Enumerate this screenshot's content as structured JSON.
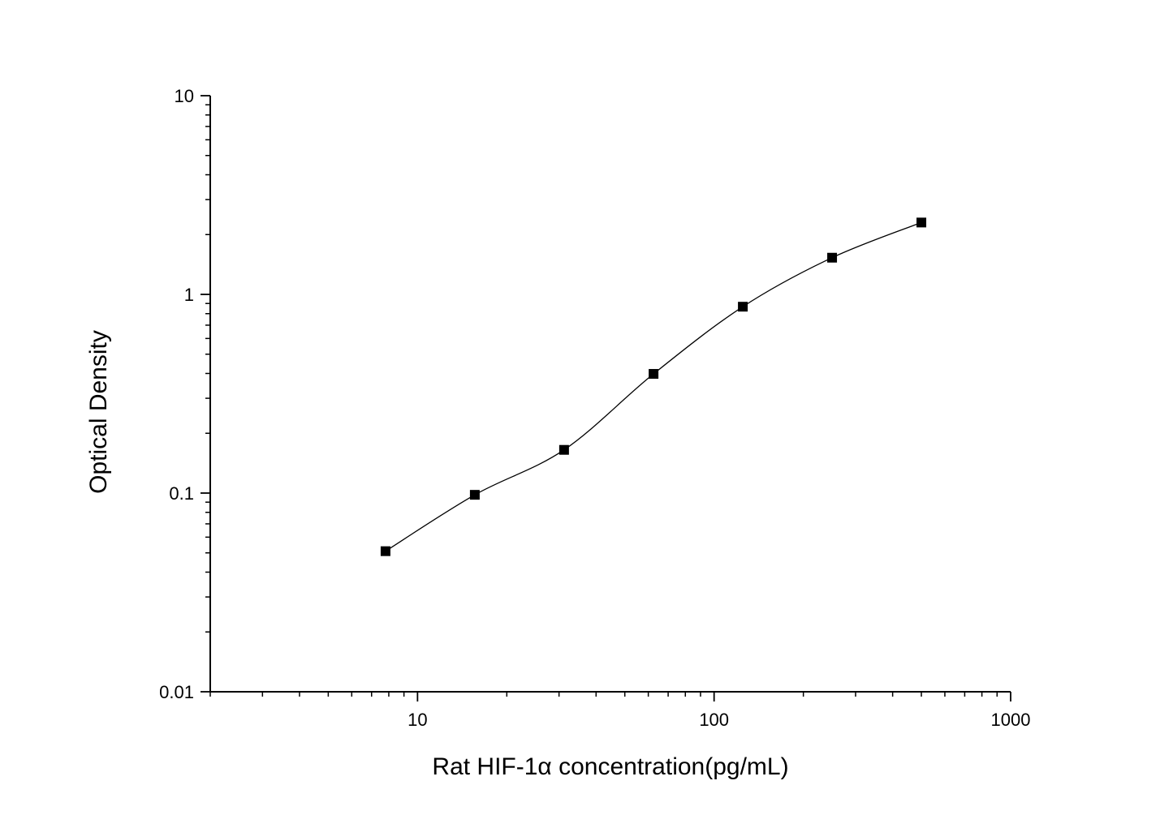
{
  "chart_data": {
    "type": "scatter",
    "title": "",
    "xlabel": "Rat HIF-1α  concentration(pg/mL)",
    "ylabel": "Optical Density",
    "xscale": "log",
    "yscale": "log",
    "xlim": [
      2,
      1000
    ],
    "ylim": [
      0.01,
      10
    ],
    "grid": false,
    "legend": "none",
    "x_ticks": [
      {
        "value": 10,
        "label": "10"
      },
      {
        "value": 100,
        "label": "100"
      },
      {
        "value": 1000,
        "label": "1000"
      }
    ],
    "y_ticks": [
      {
        "value": 0.01,
        "label": "0.01"
      },
      {
        "value": 0.1,
        "label": "0.1"
      },
      {
        "value": 1,
        "label": "1"
      },
      {
        "value": 10,
        "label": "10"
      }
    ],
    "series": [
      {
        "x": [
          7.8,
          15.6,
          31.2,
          62.5,
          125,
          250,
          500
        ],
        "y": [
          0.051,
          0.098,
          0.165,
          0.398,
          0.867,
          1.53,
          2.3
        ],
        "marker": "square",
        "color": "#000000"
      }
    ],
    "fit_curve": {
      "type": "four-parameter-logistic",
      "color": "#000000"
    }
  }
}
